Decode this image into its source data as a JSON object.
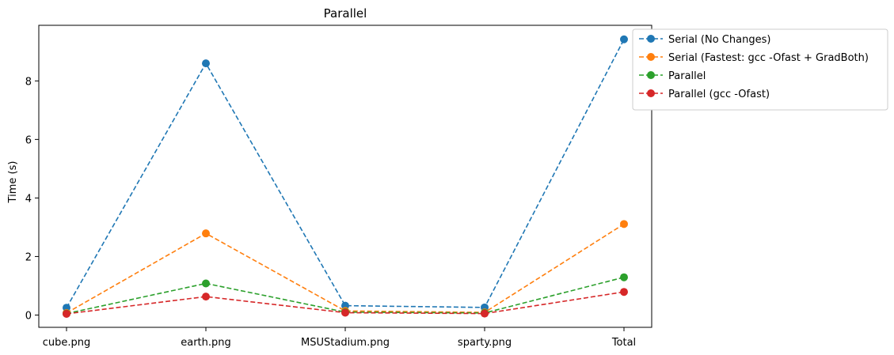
{
  "chart_data": {
    "type": "line",
    "title": "Parallel",
    "xlabel": "",
    "ylabel": "Time (s)",
    "categories": [
      "cube.png",
      "earth.png",
      "MSUStadium.png",
      "sparty.png",
      "Total"
    ],
    "ylim": [
      -0.42,
      9.9
    ],
    "yticks": [
      0,
      2,
      4,
      6,
      8
    ],
    "grid": false,
    "legend_position": "outside top-right",
    "line_style": "dashed with circle markers",
    "series": [
      {
        "name": "Serial (No Changes)",
        "color": "#1f77b4",
        "values": [
          0.25,
          8.6,
          0.32,
          0.26,
          9.42
        ]
      },
      {
        "name": "Serial (Fastest: gcc -Ofast + GradBoth)",
        "color": "#ff7f0e",
        "values": [
          0.07,
          2.79,
          0.14,
          0.09,
          3.11
        ]
      },
      {
        "name": "Parallel",
        "color": "#2ca02c",
        "values": [
          0.05,
          1.08,
          0.1,
          0.07,
          1.29
        ]
      },
      {
        "name": "Parallel (gcc -Ofast)",
        "color": "#d62728",
        "values": [
          0.04,
          0.63,
          0.08,
          0.05,
          0.79
        ]
      }
    ]
  }
}
